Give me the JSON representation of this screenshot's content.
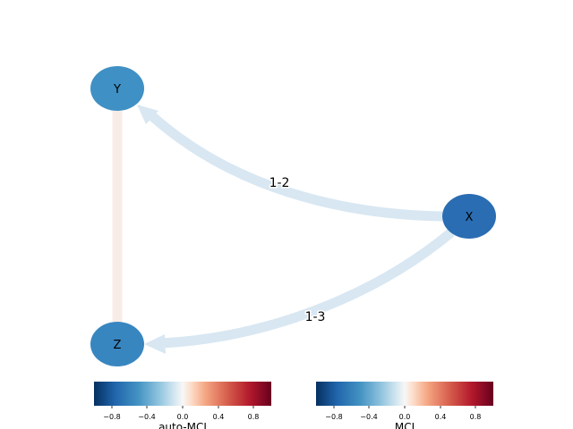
{
  "nodes": [
    {
      "id": "Y",
      "label": "Y",
      "color": "#3f90c4"
    },
    {
      "id": "X",
      "label": "X",
      "color": "#2a6db2"
    },
    {
      "id": "Z",
      "label": "Z",
      "color": "#3886c0"
    }
  ],
  "edges": [
    {
      "from": "X",
      "to": "Y",
      "label": "1-2",
      "color": "#d8e7f2",
      "directed": true
    },
    {
      "from": "X",
      "to": "Z",
      "label": "1-3",
      "color": "#d8e7f2",
      "directed": true
    },
    {
      "from": "Y",
      "to": "Z",
      "label": "",
      "color": "#f8ece6",
      "directed": false
    }
  ],
  "colorbars": [
    {
      "label": "auto-MCI",
      "ticks": [
        "−0.8",
        "−0.4",
        "0.0",
        "0.4",
        "0.8"
      ],
      "colormap": "RdBu_r",
      "range": [
        -1,
        1
      ]
    },
    {
      "label": "MCI",
      "ticks": [
        "−0.8",
        "−0.4",
        "0.0",
        "0.4",
        "0.8"
      ],
      "colormap": "RdBu_r",
      "range": [
        -1,
        1
      ]
    }
  ]
}
